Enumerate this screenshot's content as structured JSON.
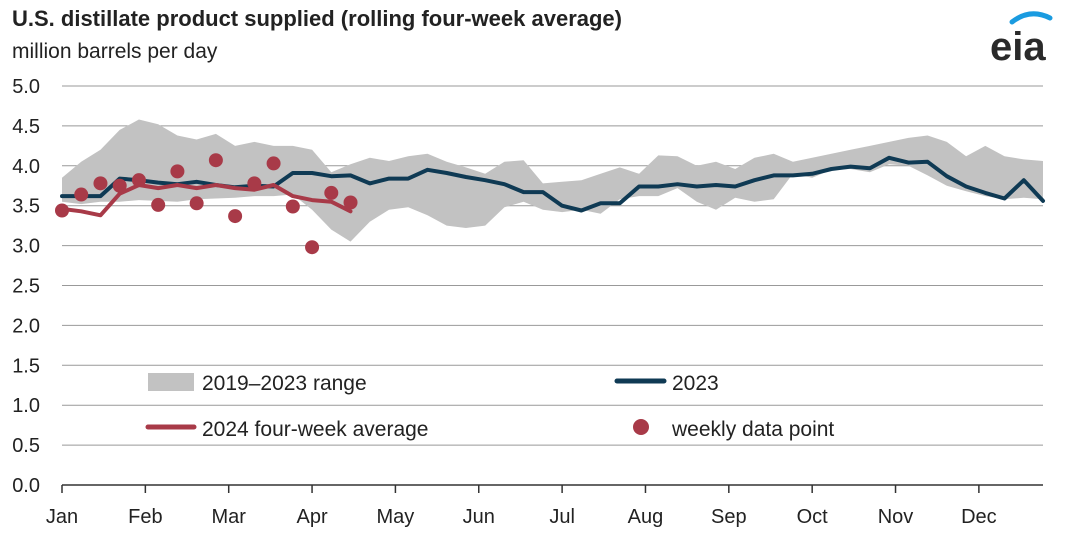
{
  "title": "U.S. distillate product supplied (rolling four-week average)",
  "subtitle": "million barrels per day",
  "logo_text": "eia",
  "colors": {
    "range": "#c2c2c2",
    "line_2023": "#0f3a54",
    "line_2024": "#a83a48",
    "points": "#a83a48",
    "grid": "#999999",
    "logo_arc": "#1a9be0"
  },
  "chart_data": {
    "type": "line",
    "x_unit": "week of year",
    "xlim": [
      1,
      52
    ],
    "ylim": [
      0,
      5
    ],
    "yticks": [
      "0.0",
      "0.5",
      "1.0",
      "1.5",
      "2.0",
      "2.5",
      "3.0",
      "3.5",
      "4.0",
      "4.5",
      "5.0"
    ],
    "months": [
      "Jan",
      "Feb",
      "Mar",
      "Apr",
      "May",
      "Jun",
      "Jul",
      "Aug",
      "Sep",
      "Oct",
      "Nov",
      "Dec"
    ],
    "grid": true,
    "legend": {
      "range": "2019–2023 range",
      "line_2023": "2023",
      "line_2024": "2024 four-week average",
      "points": "weekly data point"
    },
    "range_weeks": [
      1,
      2,
      3,
      4,
      5,
      6,
      7,
      8,
      9,
      10,
      11,
      12,
      13,
      14,
      15,
      16,
      17,
      18,
      19,
      20,
      21,
      22,
      23,
      24,
      25,
      26,
      27,
      28,
      29,
      30,
      31,
      32,
      33,
      34,
      35,
      36,
      37,
      38,
      39,
      40,
      41,
      42,
      43,
      44,
      45,
      46,
      47,
      48,
      49,
      50,
      51,
      52
    ],
    "range_max": [
      3.85,
      4.05,
      4.2,
      4.45,
      4.58,
      4.52,
      4.38,
      4.33,
      4.4,
      4.25,
      4.3,
      4.25,
      4.25,
      4.2,
      3.92,
      4.02,
      4.1,
      4.06,
      4.12,
      4.15,
      4.05,
      3.98,
      3.9,
      4.05,
      4.07,
      3.78,
      3.8,
      3.82,
      3.9,
      3.98,
      3.9,
      4.13,
      4.12,
      4.0,
      4.05,
      3.96,
      4.1,
      4.15,
      4.05,
      4.1,
      4.15,
      4.2,
      4.25,
      4.3,
      4.35,
      4.38,
      4.3,
      4.12,
      4.25,
      4.12,
      4.08,
      4.06
    ],
    "range_min": [
      3.55,
      3.52,
      3.55,
      3.55,
      3.57,
      3.56,
      3.55,
      3.58,
      3.59,
      3.6,
      3.62,
      3.62,
      3.64,
      3.45,
      3.2,
      3.05,
      3.3,
      3.45,
      3.48,
      3.38,
      3.25,
      3.22,
      3.25,
      3.48,
      3.55,
      3.45,
      3.42,
      3.45,
      3.4,
      3.58,
      3.62,
      3.62,
      3.72,
      3.55,
      3.45,
      3.6,
      3.55,
      3.58,
      3.9,
      3.85,
      3.95,
      3.96,
      3.92,
      4.02,
      4.0,
      3.88,
      3.75,
      3.68,
      3.62,
      3.58,
      3.6,
      3.58
    ],
    "series": [
      {
        "name": "2023",
        "x": [
          1,
          2,
          3,
          4,
          5,
          6,
          7,
          8,
          9,
          10,
          11,
          12,
          13,
          14,
          15,
          16,
          17,
          18,
          19,
          20,
          21,
          22,
          23,
          24,
          25,
          26,
          27,
          28,
          29,
          30,
          31,
          32,
          33,
          34,
          35,
          36,
          37,
          38,
          39,
          40,
          41,
          42,
          43,
          44,
          45,
          46,
          47,
          48,
          49,
          50,
          51,
          52
        ],
        "values": [
          3.62,
          3.62,
          3.62,
          3.84,
          3.82,
          3.79,
          3.77,
          3.8,
          3.76,
          3.73,
          3.75,
          3.74,
          3.91,
          3.91,
          3.87,
          3.88,
          3.78,
          3.84,
          3.84,
          3.95,
          3.91,
          3.86,
          3.82,
          3.77,
          3.67,
          3.67,
          3.5,
          3.44,
          3.53,
          3.53,
          3.74,
          3.74,
          3.77,
          3.74,
          3.76,
          3.74,
          3.82,
          3.88,
          3.88,
          3.9,
          3.96,
          3.99,
          3.97,
          4.1,
          4.04,
          4.05,
          3.87,
          3.74,
          3.66,
          3.59,
          3.82,
          3.56
        ]
      },
      {
        "name": "2024 four-week average",
        "x": [
          1,
          2,
          3,
          4,
          5,
          6,
          7,
          8,
          9,
          10,
          11,
          12,
          13,
          14,
          15,
          16
        ],
        "values": [
          3.46,
          3.43,
          3.38,
          3.65,
          3.76,
          3.72,
          3.76,
          3.72,
          3.76,
          3.72,
          3.7,
          3.76,
          3.62,
          3.57,
          3.55,
          3.43
        ]
      },
      {
        "name": "weekly data point",
        "x": [
          1,
          2,
          3,
          4,
          5,
          6,
          7,
          8,
          9,
          10,
          11,
          12,
          13,
          14,
          15,
          16
        ],
        "values": [
          3.44,
          3.64,
          3.78,
          3.75,
          3.82,
          3.51,
          3.93,
          3.53,
          4.07,
          3.37,
          3.78,
          4.03,
          3.49,
          2.98,
          3.66,
          3.54
        ]
      }
    ]
  }
}
